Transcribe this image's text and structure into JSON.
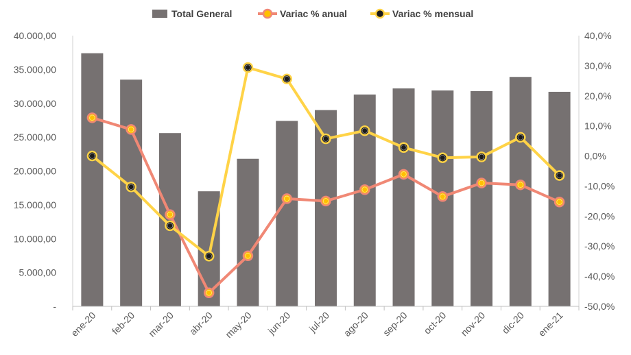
{
  "chart_data": {
    "type": "bar",
    "categories": [
      "ene-20",
      "feb-20",
      "mar-20",
      "abr-20",
      "may-20",
      "jun-20",
      "jul-20",
      "ago-20",
      "sep-20",
      "oct-20",
      "nov-20",
      "dic-20",
      "ene-21"
    ],
    "series": [
      {
        "name": "Total General",
        "type": "bar",
        "axis": "left",
        "color": "#767171",
        "values": [
          37400,
          33500,
          25600,
          17000,
          21800,
          27400,
          29000,
          31300,
          32200,
          31900,
          31800,
          33900,
          31700
        ]
      },
      {
        "name": "Variac % anual",
        "type": "line",
        "axis": "right",
        "color": "#F08875",
        "marker_fill": "#FFC000",
        "values": [
          12.7,
          8.8,
          -19.5,
          -45.5,
          -33.2,
          -14.2,
          -15.0,
          -11.2,
          -6.1,
          -13.5,
          -9.0,
          -9.6,
          -15.3
        ]
      },
      {
        "name": "Variac % mensual",
        "type": "line",
        "axis": "right",
        "color": "#FFD347",
        "marker_fill": "#1A1A1A",
        "values": [
          0.0,
          -10.3,
          -23.2,
          -33.3,
          29.4,
          25.6,
          5.7,
          8.4,
          2.8,
          -0.6,
          -0.3,
          6.2,
          -6.5
        ]
      }
    ],
    "left_axis": {
      "ylim": [
        0,
        40000
      ],
      "ticks": [
        {
          "value": 0,
          "label": "-"
        },
        {
          "value": 5000,
          "label": "5.000,00"
        },
        {
          "value": 10000,
          "label": "10.000,00"
        },
        {
          "value": 15000,
          "label": "15.000,00"
        },
        {
          "value": 20000,
          "label": "20.000,00"
        },
        {
          "value": 25000,
          "label": "25.000,00"
        },
        {
          "value": 30000,
          "label": "30.000,00"
        },
        {
          "value": 35000,
          "label": "35.000,00"
        },
        {
          "value": 40000,
          "label": "40.000,00"
        }
      ]
    },
    "right_axis": {
      "ylim": [
        -50,
        40
      ],
      "ticks": [
        {
          "value": -50,
          "label": "-50,0%"
        },
        {
          "value": -40,
          "label": "-40,0%"
        },
        {
          "value": -30,
          "label": "-30,0%"
        },
        {
          "value": -20,
          "label": "-20,0%"
        },
        {
          "value": -10,
          "label": "-10,0%"
        },
        {
          "value": 0,
          "label": "0,0%"
        },
        {
          "value": 10,
          "label": "10,0%"
        },
        {
          "value": 20,
          "label": "20,0%"
        },
        {
          "value": 30,
          "label": "30,0%"
        },
        {
          "value": 40,
          "label": "40,0%"
        }
      ]
    },
    "legend_position": "top",
    "grid": false,
    "title": "",
    "xlabel": "",
    "ylabel": ""
  }
}
